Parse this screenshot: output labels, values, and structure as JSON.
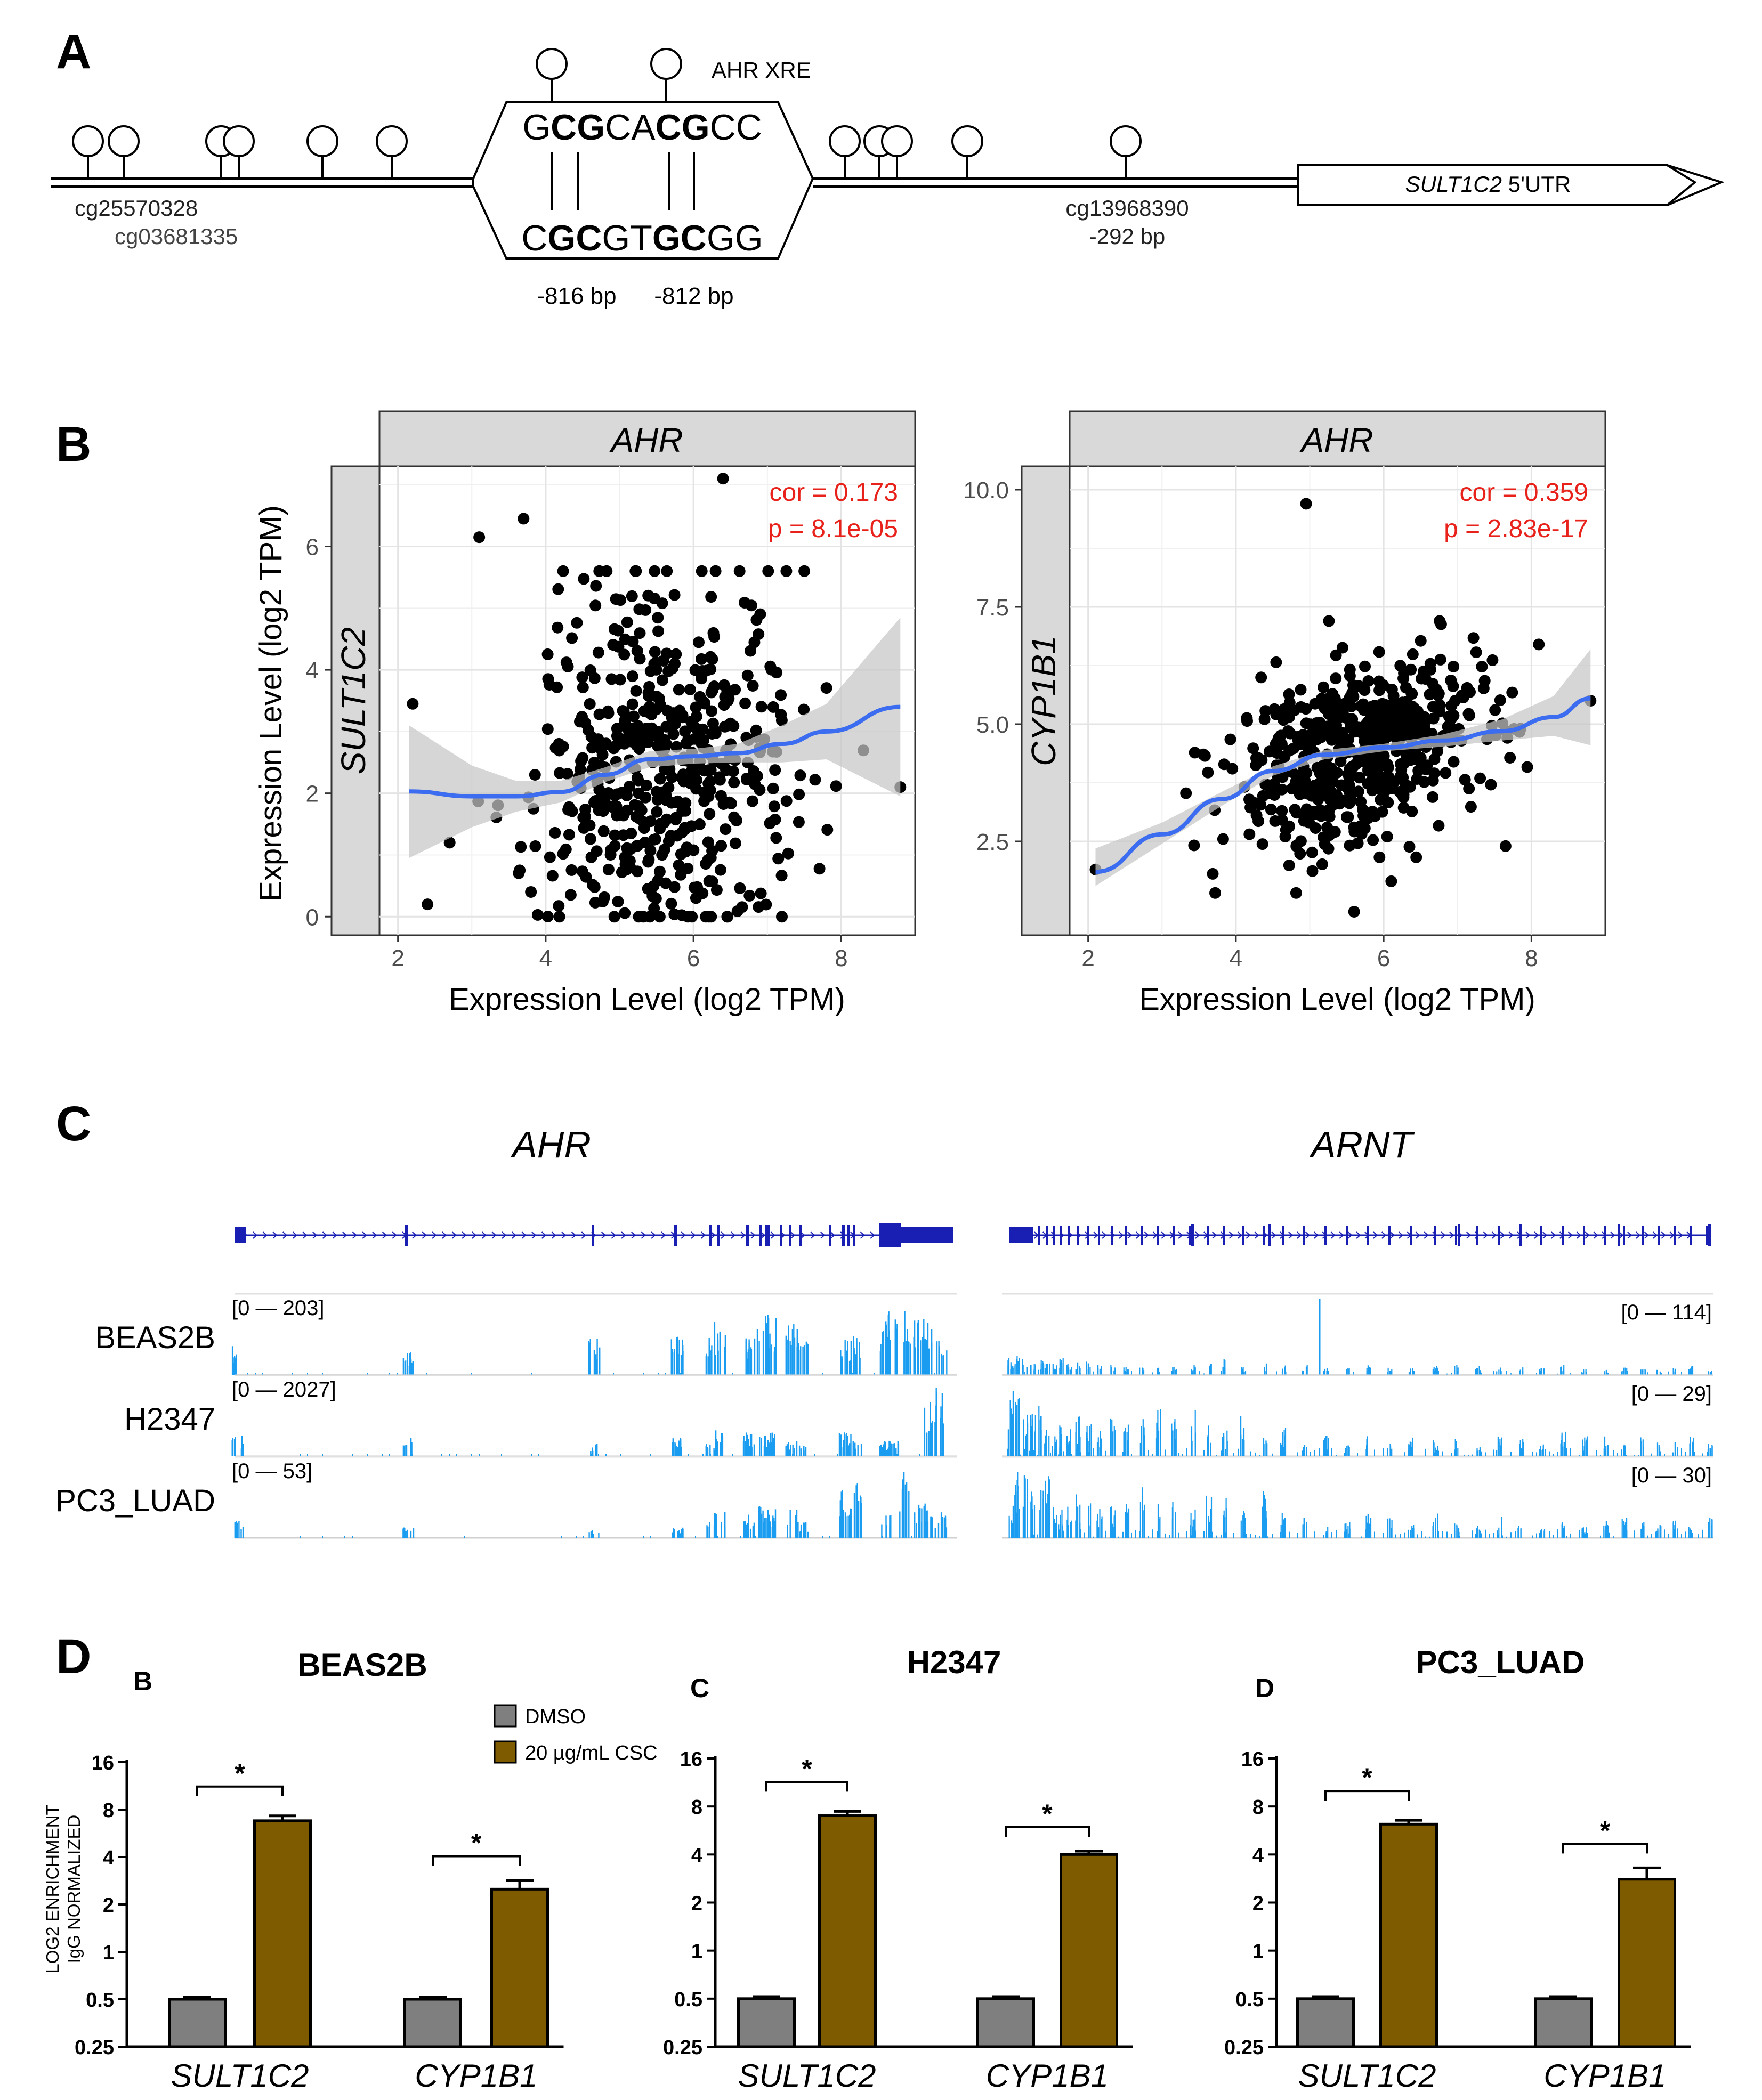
{
  "panels": {
    "a": "A",
    "b": "B",
    "c": "C",
    "d": "D"
  },
  "colors": {
    "accent_red": "#e8221b",
    "loess": "#3c6cf0",
    "ribbon": "#c6c6c6",
    "strip": "#d9d9d9",
    "gene": "#1a1fb4",
    "track": "#1a9cf0",
    "dmso": "#7f7f7f",
    "csc": "#7f5b00"
  },
  "panel_a": {
    "xre_label": "AHR XRE",
    "top_seq": [
      "G",
      "C",
      "G",
      "C",
      "A",
      "C",
      "G",
      "C",
      "C"
    ],
    "bottom_seq": [
      "C",
      "G",
      "C",
      "G",
      "T",
      "G",
      "C",
      "G",
      "G"
    ],
    "bold_top": [
      1,
      2,
      5,
      6
    ],
    "bold_bottom": [
      1,
      2,
      5,
      6
    ],
    "pos_816": "-816 bp",
    "pos_812": "-812 bp",
    "probe1": "cg25570328",
    "probe2": "cg03681335",
    "probe3": "cg13968390",
    "probe3_pos": "-292 bp",
    "utr_gene": "SULT1C2",
    "utr_suffix": " 5'UTR"
  },
  "panel_c": {
    "genes": [
      "AHR",
      "ARNT"
    ],
    "tracks": [
      {
        "cell": "BEAS2B",
        "ahr_range": "[0 — 203]",
        "arnt_range": "[0 — 114]"
      },
      {
        "cell": "H2347",
        "ahr_range": "[0 — 2027]",
        "arnt_range": "[0 — 29]"
      },
      {
        "cell": "PC3_LUAD",
        "ahr_range": "[0 — 53]",
        "arnt_range": "[0 — 30]"
      }
    ]
  },
  "chart_data": [
    {
      "type": "scatter",
      "strip_title": "AHR",
      "row_label": "SULT1C2",
      "xlabel": "Expression Level (log2 TPM)",
      "ylabel": "Expression Level (log2 TPM)",
      "xlim": [
        1.75,
        9.0
      ],
      "ylim": [
        -0.3,
        7.3
      ],
      "xticks": [
        2,
        4,
        6,
        8
      ],
      "yticks": [
        0,
        2,
        4,
        6
      ],
      "cor_label": "cor = 0.173",
      "p_label": "p = 8.1e-05",
      "n_points": 520,
      "x_mean": 5.6,
      "x_sd": 0.9,
      "slope": 0.16,
      "y_resid_sd": 1.45,
      "outliers": [
        [
          2.2,
          3.45
        ],
        [
          2.4,
          0.2
        ],
        [
          3.1,
          6.15
        ],
        [
          3.7,
          6.45
        ],
        [
          6.4,
          7.1
        ],
        [
          8.8,
          2.1
        ],
        [
          3.8,
          0.4
        ],
        [
          2.7,
          1.2
        ]
      ],
      "loess": [
        [
          2.15,
          2.03
        ],
        [
          3.0,
          1.95
        ],
        [
          3.6,
          1.95
        ],
        [
          4.2,
          2.02
        ],
        [
          4.8,
          2.3
        ],
        [
          5.4,
          2.55
        ],
        [
          6.0,
          2.6
        ],
        [
          6.6,
          2.65
        ],
        [
          7.2,
          2.8
        ],
        [
          7.8,
          3.0
        ],
        [
          8.8,
          3.4
        ]
      ],
      "ribbon_lo": [
        [
          2.15,
          0.95
        ],
        [
          3.0,
          1.45
        ],
        [
          3.6,
          1.7
        ],
        [
          4.2,
          1.85
        ],
        [
          4.8,
          2.18
        ],
        [
          5.4,
          2.42
        ],
        [
          6.0,
          2.48
        ],
        [
          6.6,
          2.5
        ],
        [
          7.2,
          2.5
        ],
        [
          7.8,
          2.55
        ],
        [
          8.8,
          1.95
        ]
      ],
      "ribbon_hi": [
        [
          2.15,
          3.1
        ],
        [
          3.0,
          2.45
        ],
        [
          3.6,
          2.2
        ],
        [
          4.2,
          2.2
        ],
        [
          4.8,
          2.42
        ],
        [
          5.4,
          2.68
        ],
        [
          6.0,
          2.72
        ],
        [
          6.6,
          2.8
        ],
        [
          7.2,
          3.1
        ],
        [
          7.8,
          3.45
        ],
        [
          8.8,
          4.85
        ]
      ]
    },
    {
      "type": "scatter",
      "strip_title": "AHR",
      "row_label": "CYP1B1",
      "xlabel": "Expression Level (log2 TPM)",
      "ylabel": "",
      "xlim": [
        1.75,
        9.0
      ],
      "ylim": [
        0.5,
        10.5
      ],
      "xticks": [
        2,
        4,
        6,
        8
      ],
      "yticks": [
        2.5,
        5.0,
        7.5,
        10.0
      ],
      "ytick_labels": [
        "2.5",
        "5.0",
        "7.5",
        "10.0"
      ],
      "cor_label": "cor = 0.359",
      "p_label": "p = 2.83e-17",
      "n_points": 560,
      "x_mean": 5.6,
      "x_sd": 0.85,
      "slope": 0.45,
      "y_resid_sd": 0.95,
      "outliers": [
        [
          4.95,
          9.7
        ],
        [
          5.6,
          1.0
        ],
        [
          2.1,
          1.9
        ],
        [
          8.8,
          5.5
        ],
        [
          8.1,
          6.7
        ],
        [
          7.65,
          2.4
        ]
      ],
      "loess": [
        [
          2.1,
          1.85
        ],
        [
          3.0,
          2.65
        ],
        [
          3.8,
          3.4
        ],
        [
          4.5,
          4.0
        ],
        [
          5.2,
          4.35
        ],
        [
          6.0,
          4.5
        ],
        [
          6.8,
          4.65
        ],
        [
          7.6,
          4.85
        ],
        [
          8.3,
          5.15
        ],
        [
          8.8,
          5.55
        ]
      ],
      "ribbon_lo": [
        [
          2.1,
          1.55
        ],
        [
          3.0,
          2.45
        ],
        [
          3.8,
          3.25
        ],
        [
          4.5,
          3.9
        ],
        [
          5.2,
          4.25
        ],
        [
          6.0,
          4.42
        ],
        [
          6.8,
          4.52
        ],
        [
          7.6,
          4.65
        ],
        [
          8.3,
          4.75
        ],
        [
          8.8,
          4.55
        ]
      ],
      "ribbon_hi": [
        [
          2.1,
          2.35
        ],
        [
          3.0,
          2.9
        ],
        [
          3.8,
          3.55
        ],
        [
          4.5,
          4.1
        ],
        [
          5.2,
          4.45
        ],
        [
          6.0,
          4.58
        ],
        [
          6.8,
          4.78
        ],
        [
          7.6,
          5.1
        ],
        [
          8.3,
          5.6
        ],
        [
          8.8,
          6.6
        ]
      ]
    },
    {
      "type": "bar",
      "sub_label": "B",
      "title": "BEAS2B",
      "ylabel_1": "LOG2 ENRICHMENT",
      "ylabel_2": "IgG NORMALIZED",
      "categories": [
        "SULT1C2",
        "CYP1B1"
      ],
      "yscale": "log2",
      "ylim": [
        0.25,
        16
      ],
      "ytick_labels": [
        "0.25",
        "0.5",
        "1",
        "2",
        "4",
        "8",
        "16"
      ],
      "series": [
        {
          "name": "DMSO",
          "values": [
            0.5,
            0.5
          ],
          "errors": [
            0.015,
            0.015
          ]
        },
        {
          "name": "20 µg/mL CSC",
          "values": [
            6.8,
            2.5
          ],
          "errors": [
            0.5,
            0.35
          ]
        }
      ],
      "significance": [
        "*",
        "*"
      ]
    },
    {
      "type": "bar",
      "sub_label": "C",
      "title": "H2347",
      "categories": [
        "SULT1C2",
        "CYP1B1"
      ],
      "yscale": "log2",
      "ylim": [
        0.25,
        16
      ],
      "ytick_labels": [
        "0.25",
        "0.5",
        "1",
        "2",
        "4",
        "8",
        "16"
      ],
      "series": [
        {
          "name": "DMSO",
          "values": [
            0.5,
            0.5
          ],
          "errors": [
            0.015,
            0.015
          ]
        },
        {
          "name": "20 µg/mL CSC",
          "values": [
            7.0,
            4.0
          ],
          "errors": [
            0.45,
            0.2
          ]
        }
      ],
      "significance": [
        "*",
        "*"
      ]
    },
    {
      "type": "bar",
      "sub_label": "D",
      "title": "PC3_LUAD",
      "categories": [
        "SULT1C2",
        "CYP1B1"
      ],
      "yscale": "log2",
      "ylim": [
        0.25,
        16
      ],
      "ytick_labels": [
        "0.25",
        "0.5",
        "1",
        "2",
        "4",
        "8",
        "16"
      ],
      "series": [
        {
          "name": "DMSO",
          "values": [
            0.5,
            0.5
          ],
          "errors": [
            0.015,
            0.015
          ]
        },
        {
          "name": "20 µg/mL CSC",
          "values": [
            6.2,
            2.8
          ],
          "errors": [
            0.35,
            0.5
          ]
        }
      ],
      "significance": [
        "*",
        "*"
      ]
    }
  ]
}
